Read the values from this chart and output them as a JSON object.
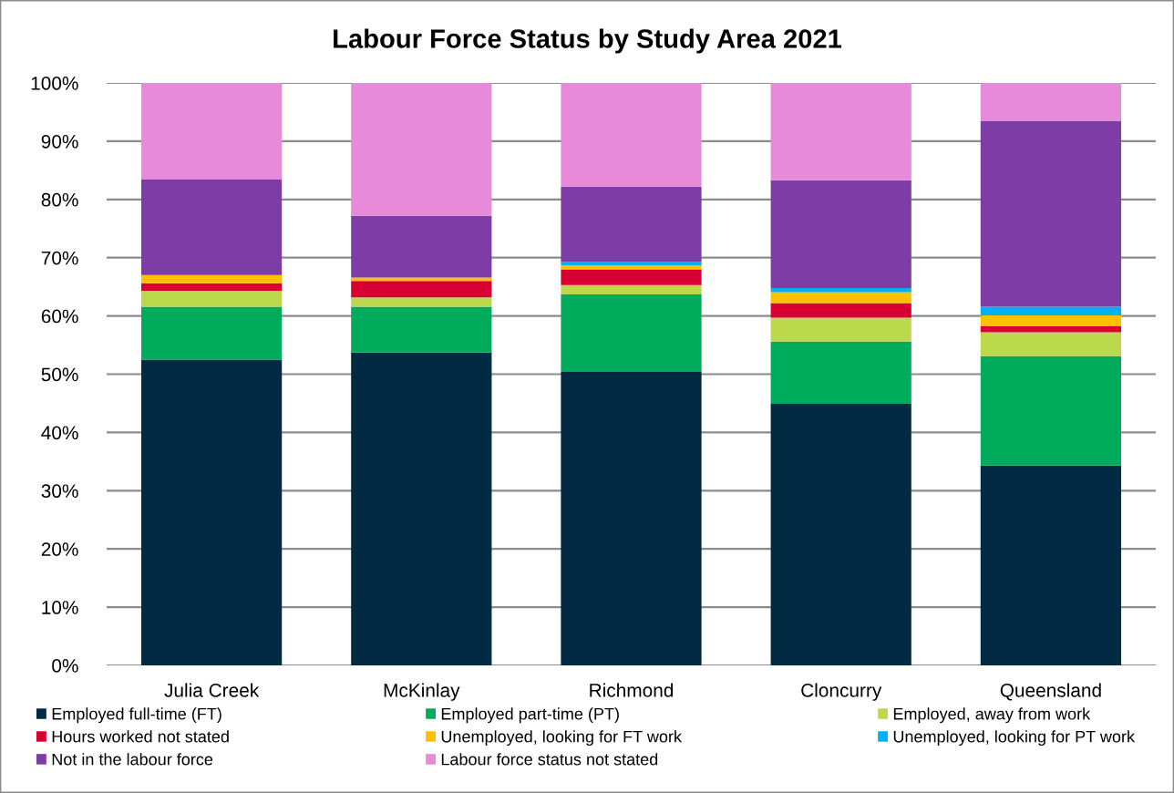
{
  "chart_data": {
    "type": "bar",
    "title": "Labour Force Status by Study Area 2021",
    "categories": [
      "Julia Creek",
      "McKinlay",
      "Richmond",
      "Cloncurry",
      "Queensland"
    ],
    "stacked": true,
    "ylim": [
      0,
      100
    ],
    "yticks": [
      {
        "value": 0,
        "label": "0%"
      },
      {
        "value": 10,
        "label": "10%"
      },
      {
        "value": 20,
        "label": "20%"
      },
      {
        "value": 30,
        "label": "30%"
      },
      {
        "value": 40,
        "label": "40%"
      },
      {
        "value": 50,
        "label": "50%"
      },
      {
        "value": 60,
        "label": "60%"
      },
      {
        "value": 70,
        "label": "70%"
      },
      {
        "value": 80,
        "label": "80%"
      },
      {
        "value": 90,
        "label": "90%"
      },
      {
        "value": 100,
        "label": "100%"
      }
    ],
    "grid": "y",
    "legend": "bottom",
    "series": [
      {
        "name": "Employed full-time (FT)",
        "color": "#022a42",
        "values": [
          52.5,
          53.7,
          50.4,
          44.9,
          34.3
        ]
      },
      {
        "name": "Employed part-time (PT)",
        "color": "#00ac5b",
        "values": [
          9.1,
          7.9,
          13.3,
          10.7,
          18.8
        ]
      },
      {
        "name": "Employed, away from work",
        "color": "#bcd94d",
        "values": [
          2.7,
          1.6,
          1.6,
          4.1,
          4.1
        ]
      },
      {
        "name": "Hours worked not stated",
        "color": "#d80032",
        "values": [
          1.3,
          2.8,
          2.7,
          2.5,
          1.0
        ]
      },
      {
        "name": "Unemployed, looking for FT work",
        "color": "#ffc000",
        "values": [
          1.4,
          0.6,
          0.7,
          1.9,
          1.9
        ]
      },
      {
        "name": "Unemployed, looking for PT work",
        "color": "#00b0f0",
        "values": [
          0,
          0,
          0.6,
          0.7,
          1.5
        ]
      },
      {
        "name": "Not in the labour force",
        "color": "#7e3ca6",
        "values": [
          16.4,
          10.6,
          12.9,
          18.5,
          31.9
        ]
      },
      {
        "name": "Labour force status not stated",
        "color": "#e78ad9",
        "values": [
          16.6,
          22.8,
          17.8,
          16.7,
          6.5
        ]
      }
    ]
  }
}
